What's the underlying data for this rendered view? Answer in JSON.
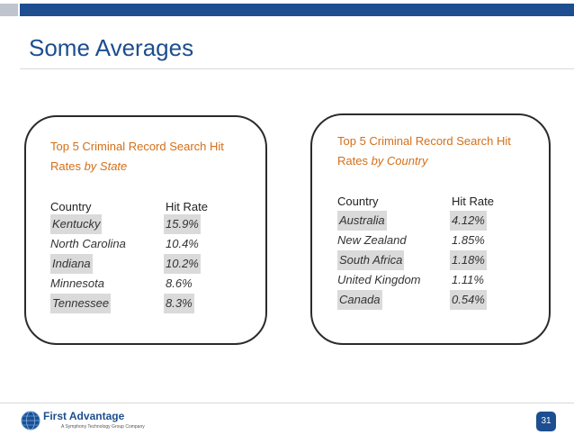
{
  "slide": {
    "title": "Some Averages",
    "page_number": "31"
  },
  "left_card": {
    "heading_line1": "Top 5 Criminal Record Search Hit",
    "heading_prefix": "Rates ",
    "heading_emphasis": "by State",
    "col_name": "Country",
    "col_rate": "Hit Rate",
    "rows": [
      {
        "name": "Kentucky",
        "rate": "15.9%"
      },
      {
        "name": "North Carolina",
        "rate": "10.4%"
      },
      {
        "name": "Indiana",
        "rate": "10.2%"
      },
      {
        "name": "Minnesota",
        "rate": "8.6%"
      },
      {
        "name": "Tennessee",
        "rate": "8.3%"
      }
    ]
  },
  "right_card": {
    "heading_line1": "Top 5 Criminal Record Search Hit",
    "heading_prefix": "Rates ",
    "heading_emphasis": "by Country",
    "col_name": "Country",
    "col_rate": "Hit Rate",
    "rows": [
      {
        "name": "Australia",
        "rate": "4.12%"
      },
      {
        "name": "New Zealand",
        "rate": "1.85%"
      },
      {
        "name": "South Africa",
        "rate": "1.18%"
      },
      {
        "name": "United Kingdom",
        "rate": "1.11%"
      },
      {
        "name": "Canada",
        "rate": "0.54%"
      }
    ]
  },
  "footer": {
    "logo_name": "First Advantage",
    "logo_tagline": "A Symphony Technology Group Company"
  },
  "colors": {
    "brand_blue": "#1d4e8f",
    "heading_orange": "#d46f19",
    "row_shade": "#dadada"
  }
}
